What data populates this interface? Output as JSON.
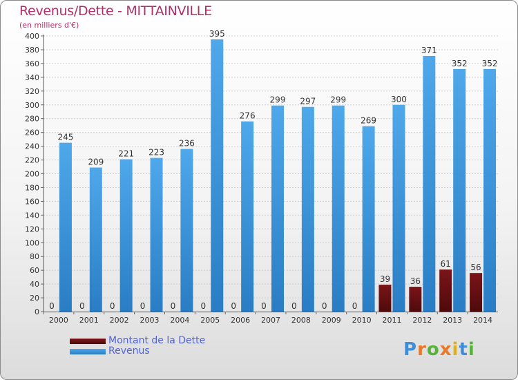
{
  "chart_data": {
    "type": "bar",
    "title": "Revenus/Dette - MITTAINVILLE",
    "subtitle": "(en milliers d'€)",
    "categories": [
      "2000",
      "2001",
      "2002",
      "2003",
      "2004",
      "2005",
      "2006",
      "2007",
      "2008",
      "2009",
      "2010",
      "2011",
      "2012",
      "2013",
      "2014"
    ],
    "series": [
      {
        "name": "Montant de la Dette",
        "color": "#6b0f12",
        "values": [
          0,
          0,
          0,
          0,
          0,
          0,
          0,
          0,
          0,
          0,
          0,
          39,
          36,
          61,
          56
        ]
      },
      {
        "name": "Revenus",
        "color": "#3f9ee3",
        "values": [
          245,
          209,
          221,
          223,
          236,
          395,
          276,
          299,
          297,
          299,
          269,
          300,
          371,
          352,
          352
        ]
      }
    ],
    "ylim": [
      0,
      400
    ],
    "ytick_step": 20,
    "grid": true,
    "legend_position": "bottom-left"
  },
  "logo": {
    "text": "Proxiti",
    "letters": [
      "P",
      "r",
      "o",
      "x",
      "i",
      "t",
      "i"
    ],
    "colors": [
      "#3f8fd8",
      "#e8782a",
      "#58b23a",
      "#e8782a",
      "#d9b21e",
      "#3f8fd8",
      "#58b23a"
    ]
  }
}
